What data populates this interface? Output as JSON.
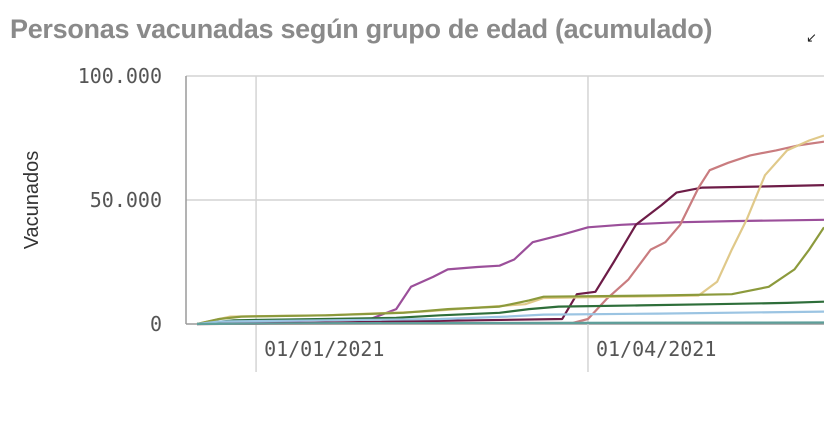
{
  "title": "Personas vacunadas según grupo de edad (acumulado)",
  "icons": {
    "expand": "expand-arrow-icon"
  },
  "chart_data": {
    "type": "line",
    "title": "Personas vacunadas según grupo de edad (acumulado)",
    "ylabel": "Vacunados",
    "xlabel": "",
    "ylim": [
      0,
      100000
    ],
    "xlim": [
      "2020-12-13",
      "2021-06-04"
    ],
    "yticks": [
      {
        "value": 0,
        "label": "0"
      },
      {
        "value": 50000,
        "label": "50.000"
      },
      {
        "value": 100000,
        "label": "100.000"
      }
    ],
    "xticks": [
      {
        "value": "2021-01-01",
        "label": "01/01/2021"
      },
      {
        "value": "2021-04-01",
        "label": "01/04/2021"
      }
    ],
    "grid": true,
    "series": [
      {
        "color": "#9b4f9a",
        "points": [
          [
            "2020-12-16",
            0
          ],
          [
            "2020-12-28",
            500
          ],
          [
            "2021-01-18",
            1500
          ],
          [
            "2021-02-01",
            2000
          ],
          [
            "2021-02-08",
            6000
          ],
          [
            "2021-02-12",
            15000
          ],
          [
            "2021-02-18",
            19000
          ],
          [
            "2021-02-22",
            22000
          ],
          [
            "2021-03-02",
            23000
          ],
          [
            "2021-03-08",
            23500
          ],
          [
            "2021-03-12",
            26000
          ],
          [
            "2021-03-17",
            33000
          ],
          [
            "2021-03-25",
            36000
          ],
          [
            "2021-04-01",
            39000
          ],
          [
            "2021-04-10",
            40000
          ],
          [
            "2021-04-25",
            41000
          ],
          [
            "2021-05-10",
            41500
          ],
          [
            "2021-06-04",
            42000
          ]
        ]
      },
      {
        "color": "#6d1c47",
        "points": [
          [
            "2020-12-16",
            0
          ],
          [
            "2020-12-29",
            100
          ],
          [
            "2021-03-25",
            2000
          ],
          [
            "2021-03-29",
            12000
          ],
          [
            "2021-04-03",
            13000
          ],
          [
            "2021-04-08",
            25000
          ],
          [
            "2021-04-14",
            40000
          ],
          [
            "2021-04-21",
            48000
          ],
          [
            "2021-04-25",
            53000
          ],
          [
            "2021-05-02",
            55000
          ],
          [
            "2021-05-20",
            55500
          ],
          [
            "2021-06-04",
            56000
          ]
        ]
      },
      {
        "color": "#c97c7f",
        "points": [
          [
            "2020-12-16",
            0
          ],
          [
            "2021-03-28",
            500
          ],
          [
            "2021-04-01",
            2000
          ],
          [
            "2021-04-06",
            10000
          ],
          [
            "2021-04-12",
            18000
          ],
          [
            "2021-04-18",
            30000
          ],
          [
            "2021-04-22",
            33000
          ],
          [
            "2021-04-26",
            40000
          ],
          [
            "2021-05-01",
            55000
          ],
          [
            "2021-05-04",
            62000
          ],
          [
            "2021-05-09",
            65000
          ],
          [
            "2021-05-15",
            68000
          ],
          [
            "2021-05-22",
            70000
          ],
          [
            "2021-05-28",
            72000
          ],
          [
            "2021-06-04",
            73500
          ]
        ]
      },
      {
        "color": "#e0c98a",
        "points": [
          [
            "2020-12-16",
            0
          ],
          [
            "2020-12-25",
            3000
          ],
          [
            "2021-01-20",
            3500
          ],
          [
            "2021-02-15",
            5000
          ],
          [
            "2021-03-15",
            8000
          ],
          [
            "2021-03-20",
            10500
          ],
          [
            "2021-04-10",
            11000
          ],
          [
            "2021-05-01",
            11500
          ],
          [
            "2021-05-06",
            17000
          ],
          [
            "2021-05-10",
            30000
          ],
          [
            "2021-05-14",
            42000
          ],
          [
            "2021-05-19",
            60000
          ],
          [
            "2021-05-25",
            70000
          ],
          [
            "2021-05-31",
            74000
          ],
          [
            "2021-06-04",
            76000
          ]
        ]
      },
      {
        "color": "#8c9a3c",
        "points": [
          [
            "2020-12-16",
            0
          ],
          [
            "2020-12-22",
            2000
          ],
          [
            "2020-12-28",
            3000
          ],
          [
            "2021-01-20",
            3500
          ],
          [
            "2021-02-10",
            4500
          ],
          [
            "2021-02-22",
            6000
          ],
          [
            "2021-03-08",
            7000
          ],
          [
            "2021-03-16",
            9500
          ],
          [
            "2021-03-20",
            11000
          ],
          [
            "2021-04-20",
            11500
          ],
          [
            "2021-05-10",
            12000
          ],
          [
            "2021-05-20",
            15000
          ],
          [
            "2021-05-27",
            22000
          ],
          [
            "2021-05-31",
            30000
          ],
          [
            "2021-06-04",
            39000
          ]
        ]
      },
      {
        "color": "#2e6e3a",
        "points": [
          [
            "2020-12-16",
            0
          ],
          [
            "2020-12-26",
            1500
          ],
          [
            "2021-01-20",
            2000
          ],
          [
            "2021-02-08",
            2500
          ],
          [
            "2021-02-20",
            3500
          ],
          [
            "2021-03-08",
            4500
          ],
          [
            "2021-03-16",
            6000
          ],
          [
            "2021-03-24",
            7000
          ],
          [
            "2021-04-15",
            7500
          ],
          [
            "2021-05-05",
            8000
          ],
          [
            "2021-05-25",
            8500
          ],
          [
            "2021-06-04",
            9000
          ]
        ]
      },
      {
        "color": "#9bc4e2",
        "points": [
          [
            "2020-12-16",
            0
          ],
          [
            "2020-12-22",
            1000
          ],
          [
            "2021-01-20",
            1500
          ],
          [
            "2021-02-20",
            2000
          ],
          [
            "2021-03-10",
            3000
          ],
          [
            "2021-03-20",
            3800
          ],
          [
            "2021-04-20",
            4200
          ],
          [
            "2021-06-04",
            5000
          ]
        ]
      },
      {
        "color": "#5e9f9a",
        "points": [
          [
            "2020-12-16",
            0
          ],
          [
            "2021-01-10",
            300
          ],
          [
            "2021-06-04",
            600
          ]
        ]
      }
    ]
  }
}
